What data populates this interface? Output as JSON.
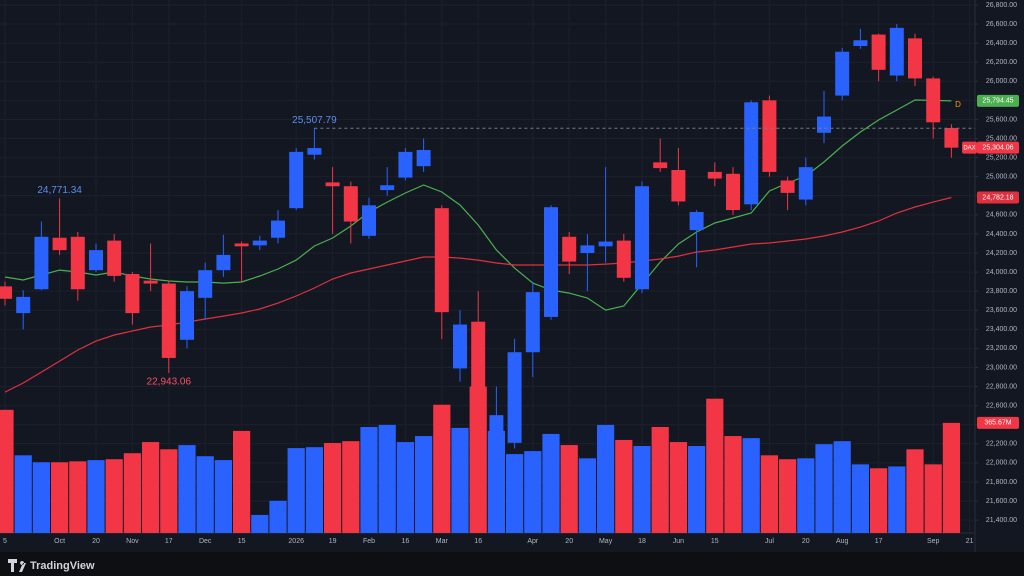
{
  "chart_data": {
    "type": "candlestick",
    "symbol": "DAX",
    "badge": "D",
    "brand": "TradingView",
    "categories": [
      "5",
      null,
      null,
      "Oct",
      null,
      "20",
      null,
      "Nov",
      null,
      "17",
      null,
      "Dec",
      null,
      "15",
      null,
      null,
      "2026",
      null,
      "19",
      null,
      "Feb",
      null,
      "16",
      null,
      "Mar",
      null,
      "16",
      null,
      null,
      "Apr",
      null,
      "20",
      null,
      "May",
      null,
      "18",
      null,
      "Jun",
      null,
      "15",
      null,
      null,
      "Jul",
      null,
      "20",
      null,
      "Aug",
      null,
      "17",
      null,
      null,
      "Sep",
      null,
      "21"
    ],
    "open": [
      23850,
      23570,
      23820,
      24360,
      24370,
      24020,
      24330,
      23980,
      23910,
      23880,
      23290,
      23730,
      24020,
      24300,
      24280,
      24360,
      24670,
      25230,
      24940,
      24900,
      24380,
      24860,
      24990,
      25110,
      24670,
      22990,
      23480,
      22300,
      22210,
      23160,
      23530,
      24370,
      24200,
      24270,
      24330,
      23820,
      25150,
      25070,
      24440,
      25050,
      25030,
      24710,
      25800,
      24960,
      24760,
      25460,
      25850,
      26370,
      26490,
      26060,
      26450,
      26030,
      25510,
      null
    ],
    "high": [
      23900,
      23810,
      24530,
      24771.34,
      24420,
      24300,
      24400,
      24000,
      24300,
      23900,
      23850,
      24100,
      24390,
      24320,
      24380,
      24650,
      25300,
      25507.79,
      25100,
      24950,
      24780,
      25100,
      25300,
      25400,
      24700,
      23600,
      23800,
      22800,
      23300,
      23900,
      24700,
      24420,
      24400,
      25100,
      24400,
      24950,
      25400,
      25300,
      24650,
      25150,
      25100,
      25800,
      25850,
      25000,
      25200,
      25900,
      26350,
      26550,
      26500,
      26600,
      26500,
      26050,
      25550,
      null
    ],
    "low": [
      23650,
      23400,
      23810,
      24180,
      23700,
      24000,
      23900,
      23450,
      23800,
      22943.06,
      23200,
      23500,
      23950,
      23900,
      24230,
      24300,
      24650,
      25180,
      24400,
      24300,
      24350,
      24800,
      24960,
      25050,
      23300,
      22850,
      22500,
      21800,
      22150,
      22900,
      23500,
      23980,
      23800,
      24100,
      23900,
      23780,
      25050,
      24700,
      24050,
      24900,
      24600,
      24650,
      25000,
      24650,
      24700,
      25350,
      25800,
      26340,
      26000,
      26000,
      25950,
      25400,
      25200,
      null
    ],
    "close": [
      23720,
      23740,
      24370,
      24230,
      23820,
      24230,
      23960,
      23570,
      23880,
      23100,
      23800,
      24020,
      24180,
      24270,
      24330,
      24540,
      25260,
      25300,
      24900,
      24530,
      24700,
      24910,
      25260,
      25280,
      23580,
      23450,
      22640,
      22500,
      23160,
      23790,
      24680,
      24110,
      24280,
      24320,
      23940,
      24900,
      25090,
      24740,
      24630,
      24980,
      24650,
      25780,
      25050,
      24830,
      25100,
      25630,
      26310,
      26430,
      26120,
      26560,
      26030,
      25570,
      25304.06,
      null
    ],
    "last_close_label": "25,304.06",
    "up_color": "#2962ff",
    "down_color": "#f23645",
    "volume": [
      409,
      258,
      235,
      235,
      238,
      242,
      245,
      265,
      302,
      278,
      292,
      255,
      242,
      339,
      60,
      107,
      282,
      285,
      299,
      305,
      352,
      359,
      302,
      322,
      426,
      349,
      486,
      339,
      262,
      272,
      329,
      292,
      248,
      359,
      309,
      289,
      352,
      302,
      289,
      446,
      322,
      315,
      258,
      245,
      248,
      295,
      305,
      228,
      215,
      221,
      278,
      228,
      365.67,
      null
    ],
    "volume_last_label": "365.67M",
    "vlim": [
      0,
      1770
    ],
    "lines": [
      {
        "color": "#4caf50",
        "last_label": "25,794.45",
        "values": [
          23948,
          23917,
          23969,
          24021,
          24001,
          23969,
          24001,
          23959,
          23927,
          23906,
          23896,
          23896,
          23885,
          23896,
          23959,
          24032,
          24126,
          24273,
          24357,
          24483,
          24630,
          24734,
          24829,
          24913,
          24839,
          24703,
          24493,
          24231,
          24042,
          23885,
          23812,
          23780,
          23728,
          23602,
          23644,
          23875,
          24105,
          24294,
          24420,
          24514,
          24567,
          24619,
          24850,
          24934,
          25007,
          25154,
          25322,
          25468,
          25594,
          25699,
          25804,
          25800,
          25794.45,
          null
        ]
      },
      {
        "color": "#e0303d",
        "last_label": "24,782.18",
        "values": [
          22742,
          22837,
          22952,
          23067,
          23183,
          23277,
          23340,
          23382,
          23424,
          23445,
          23476,
          23508,
          23539,
          23571,
          23613,
          23675,
          23749,
          23833,
          23927,
          23990,
          24032,
          24074,
          24116,
          24158,
          24158,
          24147,
          24126,
          24095,
          24074,
          24074,
          24074,
          24074,
          24074,
          24084,
          24095,
          24116,
          24137,
          24168,
          24210,
          24231,
          24263,
          24294,
          24305,
          24326,
          24347,
          24378,
          24420,
          24472,
          24535,
          24619,
          24682,
          24734,
          24782.18,
          null
        ]
      }
    ],
    "annotations": [
      {
        "value": 25507.79,
        "label": "25,507.79",
        "color": "#5b8def",
        "dashed": true
      },
      {
        "value": 24771.34,
        "label": "24,771.34",
        "color": "#5b8def"
      },
      {
        "value": 22943.06,
        "label": "22,943.06",
        "color": "#f7525f"
      }
    ],
    "ylim": [
      21265,
      26852
    ],
    "yticks": [
      {
        "value": 21400,
        "label": "21,400.00"
      },
      {
        "value": 21600,
        "label": "21,600.00"
      },
      {
        "value": 21800,
        "label": "21,800.00"
      },
      {
        "value": 22000,
        "label": "22,000.00"
      },
      {
        "value": 22200,
        "label": "22,200.00"
      },
      {
        "value": 22400,
        "label": "22,400.00"
      },
      {
        "value": 22600,
        "label": "22,600.00"
      },
      {
        "value": 22800,
        "label": "22,800.00"
      },
      {
        "value": 23000,
        "label": "23,000.00"
      },
      {
        "value": 23200,
        "label": "23,200.00"
      },
      {
        "value": 23400,
        "label": "23,400.00"
      },
      {
        "value": 23600,
        "label": "23,600.00"
      },
      {
        "value": 23800,
        "label": "23,800.00"
      },
      {
        "value": 24000,
        "label": "24,000.00"
      },
      {
        "value": 24200,
        "label": "24,200.00"
      },
      {
        "value": 24400,
        "label": "24,400.00"
      },
      {
        "value": 24600,
        "label": "24,600.00"
      },
      {
        "value": 24800,
        "label": "24,800.00"
      },
      {
        "value": 25000,
        "label": "25,000.00"
      },
      {
        "value": 25200,
        "label": "25,200.00"
      },
      {
        "value": 25400,
        "label": "25,400.00"
      },
      {
        "value": 25600,
        "label": "25,600.00"
      },
      {
        "value": 25800,
        "label": "25,800.00"
      },
      {
        "value": 26000,
        "label": "26,000.00"
      },
      {
        "value": 26200,
        "label": "26,200.00"
      },
      {
        "value": 26400,
        "label": "26,400.00"
      },
      {
        "value": 26600,
        "label": "26,600.00"
      },
      {
        "value": 26800,
        "label": "26,800.00"
      }
    ],
    "grid": true
  }
}
